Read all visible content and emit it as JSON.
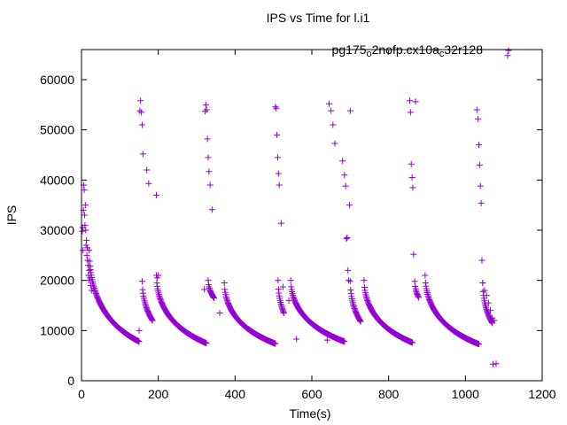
{
  "chart_data": {
    "type": "scatter",
    "title": "IPS vs Time for l.i1",
    "xlabel": "Time(s)",
    "ylabel": "IPS",
    "xlim": [
      0,
      1200
    ],
    "ylim": [
      0,
      66000
    ],
    "xticks": [
      0,
      200,
      400,
      600,
      800,
      1000,
      1200
    ],
    "yticks": [
      0,
      10000,
      20000,
      30000,
      40000,
      50000,
      60000
    ],
    "grid": false,
    "legend_position": "top-right",
    "marker": "plus",
    "color": "#9400d3",
    "series": [
      {
        "name": "pg175_o2nofp.cx10a_c32r128",
        "name_parts": [
          {
            "text": "pg175",
            "sub": false
          },
          {
            "text": "o",
            "sub": true
          },
          {
            "text": "2nofp.cx10a",
            "sub": false
          },
          {
            "text": "c",
            "sub": true
          },
          {
            "text": "32r128",
            "sub": false
          }
        ],
        "x": [
          2,
          3,
          4,
          5,
          6,
          7,
          8,
          9,
          10,
          11,
          12,
          13,
          14,
          15,
          16,
          17,
          18,
          19,
          20,
          22,
          24,
          26,
          150,
          152,
          154,
          156,
          158,
          160,
          170,
          175,
          195,
          197,
          200,
          320,
          322,
          324,
          326,
          328,
          330,
          332,
          335,
          340,
          360,
          505,
          507,
          509,
          511,
          513,
          515,
          520,
          525,
          540,
          560,
          640,
          645,
          650,
          655,
          660,
          680,
          685,
          688,
          690,
          692,
          694,
          696,
          698,
          700,
          855,
          857,
          859,
          861,
          863,
          865,
          870,
          1030,
          1033,
          1035,
          1037,
          1039,
          1041,
          1043,
          1045,
          1050,
          1055,
          1060,
          1065,
          1070,
          1075,
          1080
        ],
        "y": [
          29800,
          30500,
          26000,
          34000,
          39000,
          38000,
          33000,
          31000,
          35000,
          30000,
          27000,
          28000,
          25000,
          26500,
          24000,
          23000,
          21000,
          20000,
          22000,
          20500,
          19000,
          18000,
          10000,
          53800,
          55800,
          53500,
          51000,
          45200,
          42000,
          39300,
          37000,
          20500,
          21000,
          18200,
          53700,
          55000,
          54000,
          48200,
          44500,
          41700,
          39000,
          34100,
          13500,
          54600,
          54300,
          49000,
          44500,
          41300,
          39000,
          31400,
          18700,
          16000,
          8300,
          8100,
          55200,
          53800,
          51000,
          47300,
          43800,
          41000,
          38800,
          28300,
          28500,
          22000,
          20000,
          35000,
          53800,
          55800,
          53500,
          43200,
          40500,
          38500,
          25200,
          55600,
          54000,
          52200,
          47000,
          43000,
          38800,
          35400,
          24000,
          19500,
          18000,
          17000,
          15500,
          14000,
          12500,
          12000,
          3400
        ]
      }
    ],
    "decay_segments": [
      {
        "t_start": 20,
        "t_end": 150,
        "ips_start": 26000,
        "ips_end": 7800
      },
      {
        "t_start": 158,
        "t_end": 185,
        "ips_start": 19800,
        "ips_end": 12000
      },
      {
        "t_start": 195,
        "t_end": 325,
        "ips_start": 21000,
        "ips_end": 7500
      },
      {
        "t_start": 330,
        "t_end": 345,
        "ips_start": 20000,
        "ips_end": 16500
      },
      {
        "t_start": 372,
        "t_end": 505,
        "ips_start": 19500,
        "ips_end": 7400
      },
      {
        "t_start": 512,
        "t_end": 527,
        "ips_start": 20000,
        "ips_end": 13500
      },
      {
        "t_start": 545,
        "t_end": 685,
        "ips_start": 20000,
        "ips_end": 7800
      },
      {
        "t_start": 700,
        "t_end": 727,
        "ips_start": 19800,
        "ips_end": 11800
      },
      {
        "t_start": 736,
        "t_end": 862,
        "ips_start": 20000,
        "ips_end": 7600
      },
      {
        "t_start": 868,
        "t_end": 878,
        "ips_start": 19800,
        "ips_end": 16600
      },
      {
        "t_start": 895,
        "t_end": 1035,
        "ips_start": 21000,
        "ips_end": 7300
      },
      {
        "t_start": 1045,
        "t_end": 1070,
        "ips_start": 19500,
        "ips_end": 11500
      }
    ],
    "extra_points": [
      {
        "x": 1110,
        "y": 64800
      },
      {
        "x": 1072,
        "y": 3300
      }
    ]
  }
}
